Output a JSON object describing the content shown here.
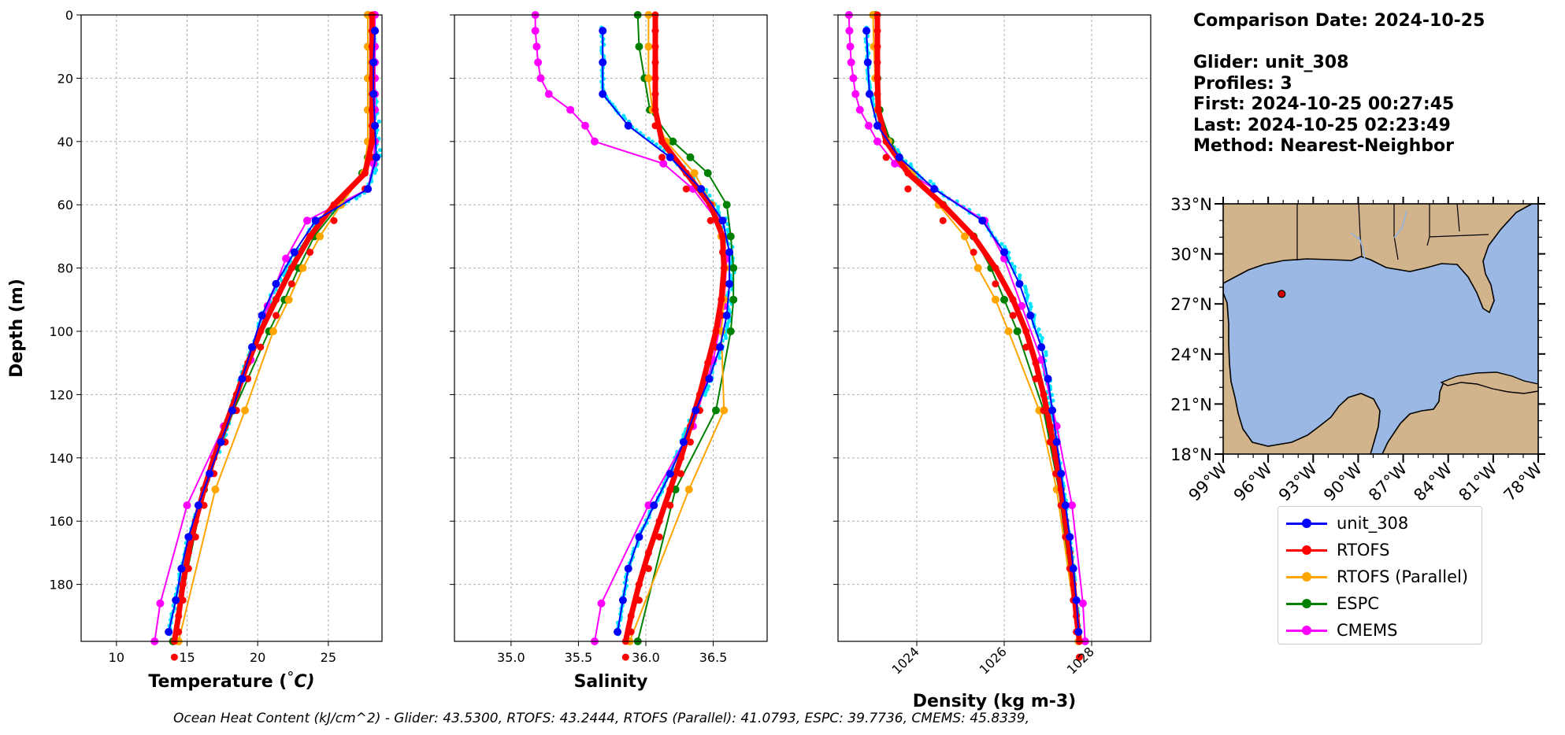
{
  "info": {
    "comparison_date": "Comparison Date: 2024-10-25",
    "glider": "Glider: unit_308",
    "profiles": "Profiles: 3",
    "first": "First: 2024-10-25 00:27:45",
    "last": "Last: 2024-10-25 02:23:49",
    "method": "Method: Nearest-Neighbor"
  },
  "footer": "Ocean Heat Content (kJ/cm^2) - Glider: 43.5300,  RTOFS: 43.2444,  RTOFS (Parallel): 41.0793,  ESPC: 39.7736,  CMEMS: 45.8339,",
  "colors": {
    "unit_308": "#0000ff",
    "RTOFS": "#ff0000",
    "RTOFS (Parallel)": "#ffa500",
    "ESPC": "#008000",
    "CMEMS": "#ff00ff",
    "glider_raw": "#00e5ff",
    "ocean": "#9ab8e3",
    "land": "#d2b48c"
  },
  "legend": [
    "unit_308",
    "RTOFS",
    "RTOFS (Parallel)",
    "ESPC",
    "CMEMS"
  ],
  "chart_data": [
    {
      "type": "line",
      "xlabel": "Temperature",
      "xlabel_unit": "°C",
      "ylabel": "Depth (m)",
      "xlim": [
        7.5,
        28.8
      ],
      "ylim": [
        198,
        0
      ],
      "xticks": [
        10,
        15,
        20,
        25
      ],
      "yticks": [
        0,
        20,
        40,
        60,
        80,
        100,
        120,
        140,
        160,
        180
      ],
      "grid": true,
      "series": [
        {
          "name": "unit_308",
          "depth": [
            5,
            15,
            25,
            35,
            45,
            55,
            65,
            75,
            85,
            95,
            105,
            115,
            125,
            135,
            145,
            155,
            165,
            175,
            185,
            195
          ],
          "values": [
            28.3,
            28.2,
            28.2,
            28.3,
            28.4,
            27.8,
            24.1,
            22.6,
            21.3,
            20.3,
            19.6,
            18.9,
            18.2,
            17.4,
            16.6,
            15.8,
            15.1,
            14.6,
            14.2,
            13.7
          ]
        },
        {
          "name": "RTOFS",
          "depth": [
            0,
            10,
            20,
            30,
            40,
            50,
            60,
            70,
            80,
            90,
            100,
            110,
            120,
            130,
            140,
            150,
            160,
            170,
            180,
            190,
            198
          ],
          "values": [
            28.1,
            28.1,
            28.1,
            28.1,
            28.1,
            27.6,
            25.4,
            23.7,
            22.4,
            21.3,
            20.2,
            19.3,
            18.5,
            17.7,
            16.9,
            16.2,
            15.6,
            15.1,
            14.7,
            14.4,
            14.1
          ]
        },
        {
          "name": "RTOFS (Parallel)",
          "depth": [
            0,
            10,
            20,
            30,
            40,
            50,
            60,
            70,
            80,
            90,
            100,
            125,
            150,
            198
          ],
          "values": [
            27.8,
            27.8,
            27.8,
            27.8,
            27.8,
            27.5,
            25.9,
            24.4,
            23.2,
            22.2,
            21.1,
            19.1,
            17.0,
            14.4
          ]
        },
        {
          "name": "ESPC",
          "depth": [
            0,
            10,
            20,
            30,
            40,
            45,
            50,
            60,
            70,
            80,
            90,
            100,
            125,
            150,
            198
          ],
          "values": [
            27.8,
            27.8,
            27.8,
            27.8,
            27.8,
            27.8,
            27.4,
            25.8,
            24.0,
            22.9,
            21.9,
            20.8,
            18.3,
            16.2,
            14.0
          ]
        },
        {
          "name": "CMEMS",
          "depth": [
            0,
            5,
            10,
            15,
            20,
            25,
            30,
            35,
            40,
            47,
            55,
            65,
            77,
            92,
            109,
            130,
            155,
            186,
            198
          ],
          "values": [
            28.3,
            28.3,
            28.3,
            28.3,
            28.3,
            28.3,
            28.3,
            28.3,
            28.3,
            28.2,
            27.8,
            23.5,
            22.0,
            20.7,
            19.5,
            17.6,
            15.0,
            13.1,
            12.7
          ]
        }
      ]
    },
    {
      "type": "line",
      "xlabel": "Salinity",
      "xlim": [
        34.58,
        36.9
      ],
      "ylim": [
        198,
        0
      ],
      "xticks": [
        35.0,
        35.5,
        36.0,
        36.5
      ],
      "xtick_labels": [
        "35.0",
        "35.5",
        "36.0",
        "36.5"
      ],
      "grid": true,
      "series": [
        {
          "name": "unit_308",
          "depth": [
            5,
            15,
            25,
            35,
            45,
            55,
            65,
            75,
            85,
            95,
            105,
            115,
            125,
            135,
            145,
            155,
            165,
            175,
            185,
            195
          ],
          "values": [
            35.68,
            35.68,
            35.68,
            35.87,
            36.18,
            36.41,
            36.57,
            36.62,
            36.62,
            36.6,
            36.55,
            36.47,
            36.37,
            36.28,
            36.18,
            36.06,
            35.95,
            35.87,
            35.83,
            35.79
          ]
        },
        {
          "name": "RTOFS",
          "depth": [
            0,
            10,
            20,
            30,
            40,
            50,
            60,
            70,
            80,
            90,
            100,
            110,
            120,
            130,
            140,
            150,
            160,
            170,
            180,
            190,
            198
          ],
          "values": [
            36.07,
            36.07,
            36.07,
            36.07,
            36.12,
            36.3,
            36.48,
            36.57,
            36.58,
            36.56,
            36.52,
            36.46,
            36.4,
            36.33,
            36.26,
            36.18,
            36.1,
            36.02,
            35.95,
            35.89,
            35.85
          ]
        },
        {
          "name": "RTOFS (Parallel)",
          "depth": [
            0,
            10,
            20,
            30,
            40,
            50,
            60,
            70,
            80,
            90,
            100,
            125,
            150,
            198
          ],
          "values": [
            36.02,
            36.02,
            36.02,
            36.05,
            36.15,
            36.36,
            36.49,
            36.56,
            36.59,
            36.58,
            36.56,
            36.58,
            36.32,
            35.88
          ]
        },
        {
          "name": "ESPC",
          "depth": [
            0,
            10,
            20,
            30,
            40,
            45,
            50,
            60,
            70,
            80,
            90,
            100,
            125,
            150,
            198
          ],
          "values": [
            35.94,
            35.95,
            35.99,
            36.03,
            36.2,
            36.33,
            36.46,
            36.6,
            36.63,
            36.65,
            36.65,
            36.63,
            36.52,
            36.22,
            35.94
          ]
        },
        {
          "name": "CMEMS",
          "depth": [
            0,
            5,
            10,
            15,
            20,
            25,
            30,
            35,
            40,
            47,
            55,
            65,
            77,
            92,
            109,
            130,
            155,
            186,
            198
          ],
          "values": [
            35.18,
            35.18,
            35.19,
            35.2,
            35.22,
            35.28,
            35.44,
            35.55,
            35.62,
            36.13,
            36.35,
            36.53,
            36.6,
            36.58,
            36.5,
            36.35,
            36.02,
            35.67,
            35.62
          ]
        }
      ]
    },
    {
      "type": "line",
      "xlabel": "Density (kg m-3)",
      "xlim": [
        1022.2,
        1029.35
      ],
      "ylim": [
        198,
        0
      ],
      "xticks": [
        1024,
        1026,
        1028
      ],
      "grid": true,
      "series": [
        {
          "name": "unit_308",
          "depth": [
            5,
            15,
            25,
            35,
            45,
            55,
            65,
            75,
            85,
            95,
            105,
            115,
            125,
            135,
            145,
            155,
            165,
            175,
            185,
            195
          ],
          "values": [
            1022.85,
            1022.88,
            1022.92,
            1023.1,
            1023.6,
            1024.4,
            1025.5,
            1026.0,
            1026.35,
            1026.6,
            1026.85,
            1027.0,
            1027.1,
            1027.2,
            1027.3,
            1027.4,
            1027.5,
            1027.58,
            1027.65,
            1027.7
          ]
        },
        {
          "name": "RTOFS",
          "depth": [
            0,
            10,
            20,
            30,
            40,
            50,
            60,
            70,
            80,
            90,
            100,
            110,
            120,
            130,
            140,
            150,
            160,
            170,
            180,
            190,
            198
          ],
          "values": [
            1023.1,
            1023.1,
            1023.1,
            1023.12,
            1023.3,
            1023.8,
            1024.6,
            1025.3,
            1025.8,
            1026.2,
            1026.5,
            1026.72,
            1026.9,
            1027.05,
            1027.18,
            1027.3,
            1027.4,
            1027.5,
            1027.58,
            1027.65,
            1027.72
          ]
        },
        {
          "name": "RTOFS (Parallel)",
          "depth": [
            0,
            10,
            20,
            30,
            40,
            50,
            60,
            70,
            80,
            90,
            100,
            125,
            150,
            198
          ],
          "values": [
            1023.0,
            1023.02,
            1023.05,
            1023.1,
            1023.35,
            1023.9,
            1024.5,
            1025.1,
            1025.4,
            1025.8,
            1026.1,
            1026.8,
            1027.2,
            1027.7
          ]
        },
        {
          "name": "ESPC",
          "depth": [
            0,
            10,
            20,
            30,
            40,
            45,
            50,
            60,
            70,
            80,
            90,
            100,
            125,
            150,
            198
          ],
          "values": [
            1023.05,
            1023.07,
            1023.1,
            1023.15,
            1023.4,
            1023.6,
            1023.9,
            1024.6,
            1025.3,
            1025.7,
            1026.0,
            1026.3,
            1026.9,
            1027.25,
            1027.7
          ]
        },
        {
          "name": "CMEMS",
          "depth": [
            0,
            5,
            10,
            15,
            20,
            25,
            30,
            35,
            40,
            47,
            55,
            65,
            77,
            92,
            109,
            130,
            155,
            186,
            198
          ],
          "values": [
            1022.45,
            1022.46,
            1022.48,
            1022.5,
            1022.55,
            1022.6,
            1022.7,
            1022.9,
            1023.1,
            1023.5,
            1024.4,
            1025.55,
            1026.0,
            1026.4,
            1026.85,
            1027.2,
            1027.55,
            1027.8,
            1027.85
          ]
        }
      ]
    },
    {
      "type": "map",
      "lon_range": [
        -99,
        -78
      ],
      "lat_range": [
        18,
        33
      ],
      "xtick_labels": [
        "99°W",
        "96°W",
        "93°W",
        "90°W",
        "87°W",
        "84°W",
        "81°W",
        "78°W"
      ],
      "ytick_labels": [
        "18°N",
        "21°N",
        "24°N",
        "27°N",
        "30°N",
        "33°N"
      ],
      "glider_position": {
        "lon": -95.1,
        "lat": 27.6
      }
    }
  ]
}
